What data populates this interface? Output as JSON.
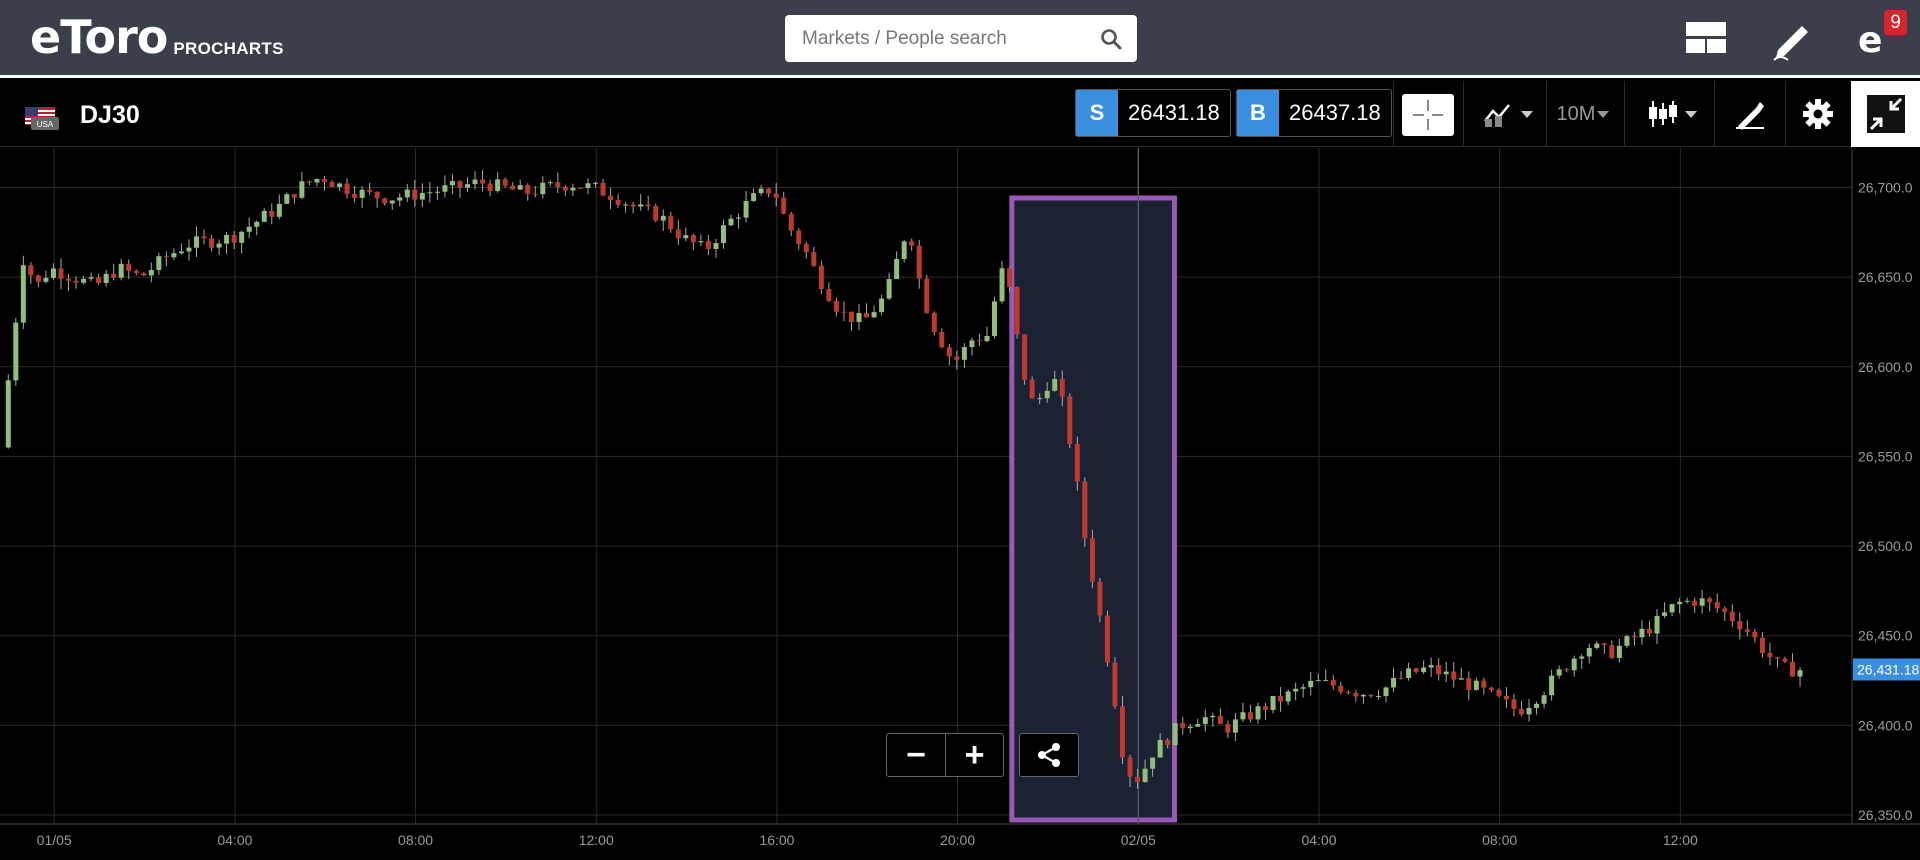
{
  "header": {
    "logo_text": "eToro",
    "logo_sub": "PROCHARTS",
    "search_placeholder": "Markets / People search",
    "notifications_count": "9",
    "icons": [
      "layout-icon",
      "pencil-icon",
      "profile-e-icon"
    ]
  },
  "instrument": {
    "flag_label": "USA",
    "symbol": "DJ30",
    "sell_label": "S",
    "sell_price": "26431.18",
    "buy_label": "B",
    "buy_price": "26437.18",
    "timeframe": "10M",
    "tools": [
      "crosshair-icon",
      "indicators-icon",
      "candlestick-icon",
      "drawing-icon",
      "settings-icon",
      "collapse-icon"
    ]
  },
  "colors": {
    "header_bg": "#3b3f4c",
    "up_candle": "#8fbf7a",
    "down_candle": "#c1392b",
    "accent_blue": "#3a8ee0",
    "highlight_box": "#9b59b6",
    "price_tag": "#3a8ee0"
  },
  "chart_data": {
    "type": "candlestick",
    "y_ticks": [
      "26,700.0",
      "26,650.0",
      "26,600.0",
      "26,550.0",
      "26,500.0",
      "26,450.0",
      "26,400.0",
      "26,350.0"
    ],
    "y_values": [
      26700,
      26650,
      26600,
      26550,
      26500,
      26450,
      26400,
      26350
    ],
    "ylim": [
      26345,
      26722
    ],
    "x_ticks": [
      "01/05",
      "04:00",
      "08:00",
      "12:00",
      "16:00",
      "20:00",
      "02/05",
      "04:00",
      "08:00",
      "12:00"
    ],
    "x_tick_hours": [
      0,
      4,
      8,
      12,
      16,
      20,
      24,
      28,
      32,
      36
    ],
    "xlim_hours": [
      -1.2,
      39.8
    ],
    "current_price_tag": "26,431.18",
    "current_price": 26431.18,
    "highlight_range_hours": [
      21.2,
      24.8
    ],
    "vertical_crosshair_hour": 24,
    "price_path": [
      [
        -1.1,
        26555
      ],
      [
        -0.9,
        26600
      ],
      [
        -0.6,
        26660
      ],
      [
        -0.3,
        26645
      ],
      [
        0,
        26655
      ],
      [
        0.5,
        26650
      ],
      [
        1,
        26645
      ],
      [
        1.5,
        26655
      ],
      [
        2,
        26650
      ],
      [
        2.5,
        26660
      ],
      [
        3,
        26668
      ],
      [
        3.5,
        26670
      ],
      [
        4,
        26672
      ],
      [
        4.5,
        26680
      ],
      [
        5,
        26688
      ],
      [
        5.5,
        26700
      ],
      [
        6,
        26706
      ],
      [
        6.5,
        26700
      ],
      [
        7,
        26696
      ],
      [
        7.5,
        26694
      ],
      [
        8,
        26696
      ],
      [
        8.5,
        26698
      ],
      [
        9,
        26700
      ],
      [
        9.5,
        26703
      ],
      [
        10,
        26700
      ],
      [
        10.5,
        26697
      ],
      [
        11,
        26700
      ],
      [
        11.5,
        26702
      ],
      [
        12,
        26700
      ],
      [
        12.5,
        26695
      ],
      [
        13,
        26688
      ],
      [
        13.5,
        26684
      ],
      [
        14,
        26672
      ],
      [
        14.5,
        26665
      ],
      [
        15,
        26680
      ],
      [
        15.5,
        26693
      ],
      [
        16,
        26700
      ],
      [
        16.3,
        26680
      ],
      [
        16.7,
        26665
      ],
      [
        17,
        26650
      ],
      [
        17.5,
        26630
      ],
      [
        18,
        26625
      ],
      [
        18.5,
        26640
      ],
      [
        19,
        26680
      ],
      [
        19.3,
        26640
      ],
      [
        19.6,
        26620
      ],
      [
        20,
        26602
      ],
      [
        20.4,
        26615
      ],
      [
        20.8,
        26618
      ],
      [
        21.0,
        26655
      ],
      [
        21.2,
        26648
      ],
      [
        21.5,
        26600
      ],
      [
        21.8,
        26575
      ],
      [
        22.0,
        26590
      ],
      [
        22.3,
        26592
      ],
      [
        22.6,
        26555
      ],
      [
        22.9,
        26505
      ],
      [
        23.2,
        26465
      ],
      [
        23.5,
        26425
      ],
      [
        23.8,
        26375
      ],
      [
        24.1,
        26370
      ],
      [
        24.4,
        26385
      ],
      [
        24.7,
        26392
      ],
      [
        25,
        26400
      ],
      [
        25.5,
        26405
      ],
      [
        26,
        26398
      ],
      [
        26.5,
        26405
      ],
      [
        27,
        26412
      ],
      [
        27.5,
        26418
      ],
      [
        28,
        26424
      ],
      [
        28.5,
        26422
      ],
      [
        29,
        26418
      ],
      [
        29.5,
        26420
      ],
      [
        30,
        26428
      ],
      [
        30.5,
        26432
      ],
      [
        31,
        26427
      ],
      [
        31.5,
        26422
      ],
      [
        32,
        26415
      ],
      [
        32.5,
        26408
      ],
      [
        33,
        26418
      ],
      [
        33.5,
        26432
      ],
      [
        34,
        26445
      ],
      [
        34.5,
        26440
      ],
      [
        35,
        26448
      ],
      [
        35.5,
        26456
      ],
      [
        36,
        26468
      ],
      [
        36.5,
        26470
      ],
      [
        37,
        26464
      ],
      [
        37.5,
        26455
      ],
      [
        38,
        26440
      ],
      [
        38.3,
        26432
      ],
      [
        38.6,
        26431
      ]
    ]
  },
  "controls": {
    "zoom_out": "−",
    "zoom_in": "+",
    "share_icon": "share-icon"
  }
}
